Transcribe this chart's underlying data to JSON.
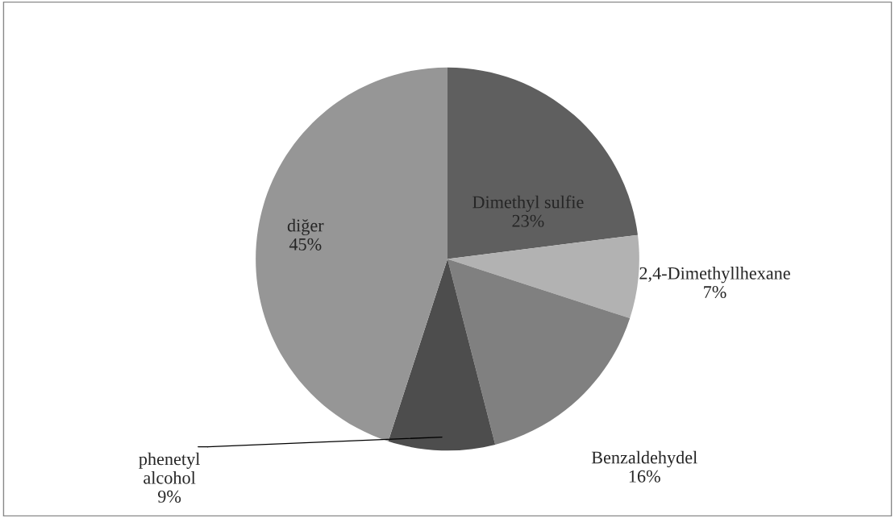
{
  "chart_data": {
    "type": "pie",
    "categories": [
      "Dimethyl sulfie",
      "2,4-Dimethyllhexane",
      "Benzaldehydel",
      "phenetyl alcohol",
      "diğer"
    ],
    "values": [
      23,
      7,
      16,
      9,
      45
    ],
    "colors": [
      "#5f5f5f",
      "#b2b2b2",
      "#808080",
      "#4d4d4d",
      "#969696"
    ],
    "value_labels": [
      "23%",
      "7%",
      "16%",
      "9%",
      "45%"
    ],
    "legend": false
  }
}
